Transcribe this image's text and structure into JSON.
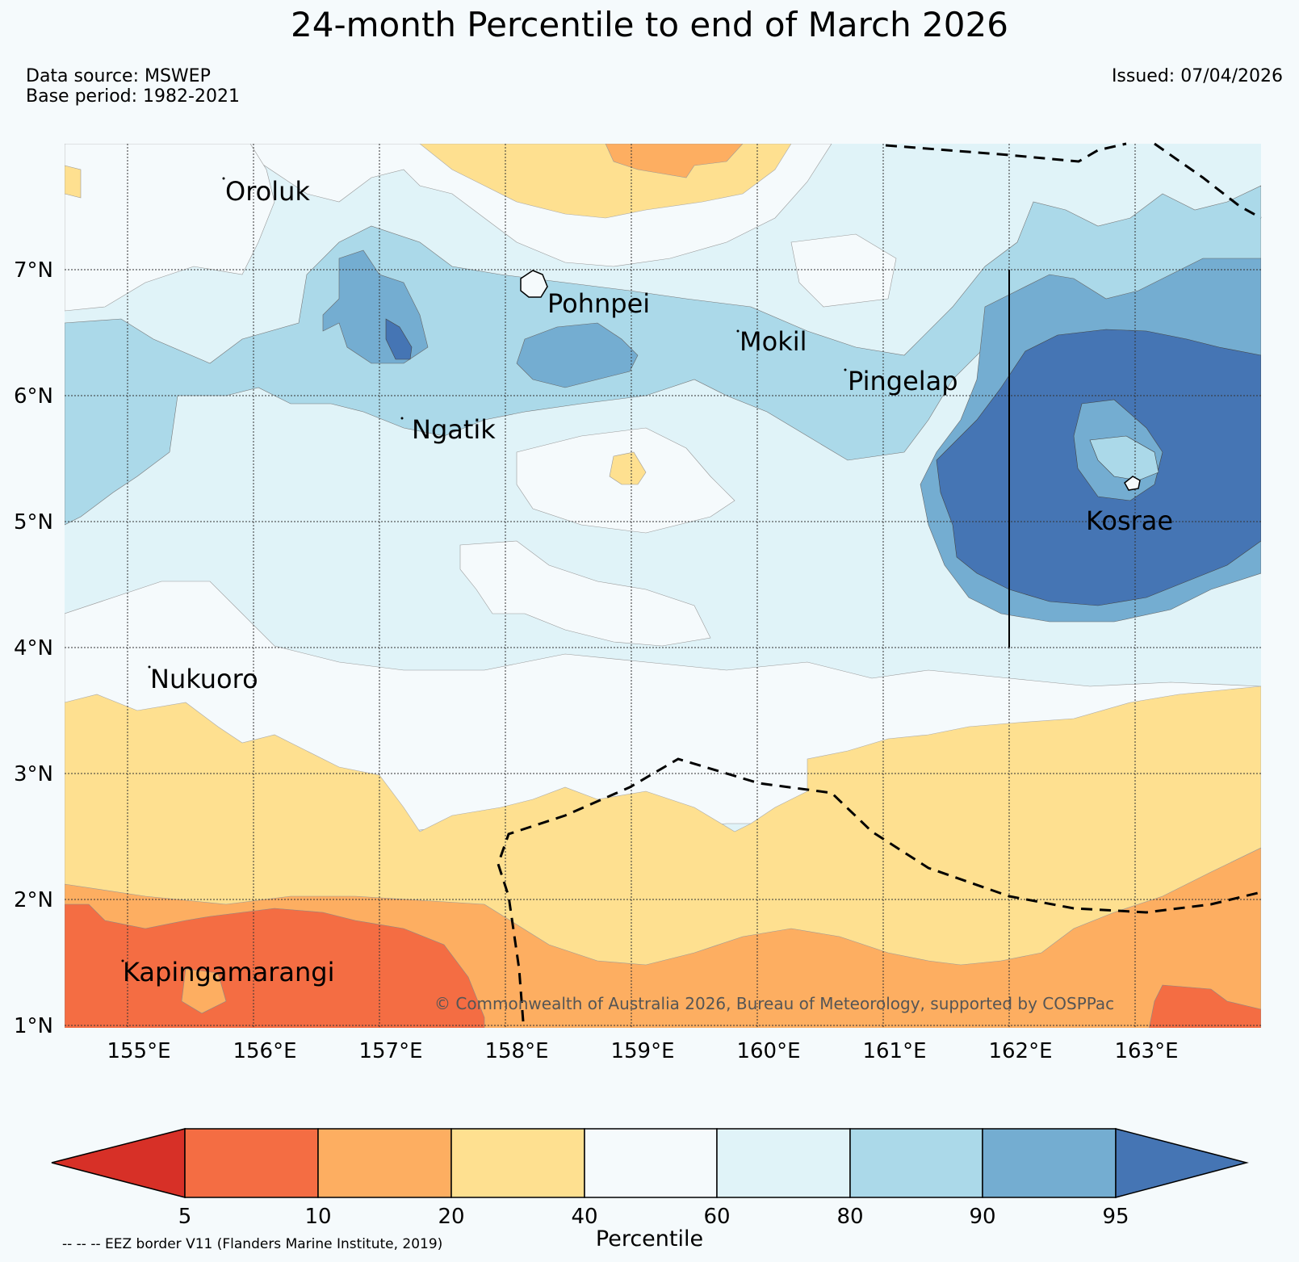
{
  "title": "24-month Percentile to end of March 2026",
  "meta": {
    "data_source": "Data source: MSWEP",
    "base_period": "Base period: 1982-2021",
    "issued": "Issued: 07/04/2026"
  },
  "map": {
    "lon_labels": [
      "155°E",
      "156°E",
      "157°E",
      "158°E",
      "159°E",
      "160°E",
      "161°E",
      "162°E",
      "163°E"
    ],
    "lat_labels": [
      "7°N",
      "6°N",
      "5°N",
      "4°N",
      "3°N",
      "2°N",
      "1°N"
    ],
    "places": [
      "Oroluk",
      "Pohnpei",
      "Mokil",
      "Pingelap",
      "Ngatik",
      "Kosrae",
      "Nukuoro",
      "Kapingamarangi"
    ],
    "copyright": "© Commonwealth of Australia 2026, Bureau of Meteorology, supported by COSPPac",
    "colors": {
      "lt5": "#d73027",
      "p5_10": "#f46d43",
      "p10_20": "#fdae61",
      "p20_40": "#fee090",
      "p40_60": "#f5fafc",
      "p60_80": "#e0f3f8",
      "p80_90": "#abd9e9",
      "p90_95": "#74add1",
      "gt95": "#4575b4"
    }
  },
  "colorbar": {
    "ticks": [
      "5",
      "10",
      "20",
      "40",
      "60",
      "80",
      "90",
      "95"
    ],
    "title": "Percentile",
    "colors": [
      "#d73027",
      "#f46d43",
      "#fdae61",
      "#fee090",
      "#f5fafc",
      "#e0f3f8",
      "#abd9e9",
      "#74add1",
      "#4575b4"
    ]
  },
  "eez_note": "-- -- -- EEZ border V11 (Flanders Marine Institute, 2019)"
}
